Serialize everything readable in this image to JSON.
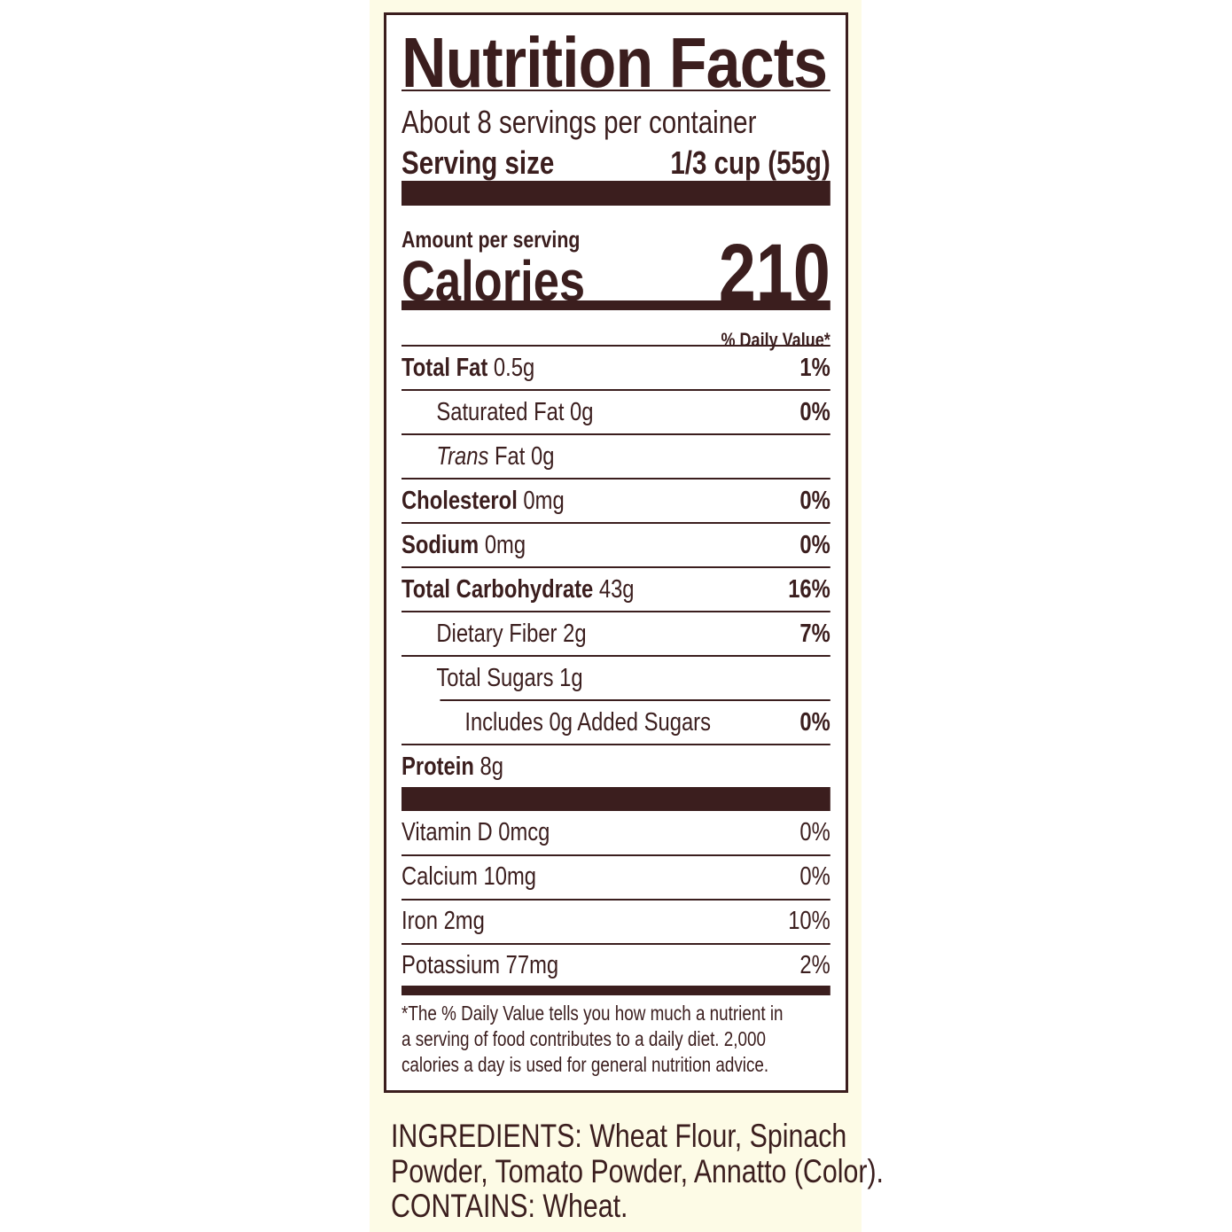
{
  "label": {
    "title": "Nutrition Facts",
    "servings_per_container": "About 8 servings per container",
    "serving_size_label": "Serving size",
    "serving_size_value": "1/3 cup (55g)",
    "amount_per_serving": "Amount per serving",
    "calories_label": "Calories",
    "calories_value": "210",
    "daily_value_header": "% Daily Value*",
    "nutrients": [
      {
        "name": "Total Fat",
        "amount": "0.5g",
        "dv": "1%"
      },
      {
        "name": "Saturated Fat",
        "amount": "0g",
        "dv": "0%"
      },
      {
        "name": "Trans",
        "amount": "Fat 0g",
        "dv": ""
      },
      {
        "name": "Cholesterol",
        "amount": "0mg",
        "dv": "0%"
      },
      {
        "name": "Sodium",
        "amount": "0mg",
        "dv": "0%"
      },
      {
        "name": "Total Carbohydrate",
        "amount": "43g",
        "dv": "16%"
      },
      {
        "name": "Dietary Fiber",
        "amount": "2g",
        "dv": "7%"
      },
      {
        "name": "Total Sugars",
        "amount": "1g",
        "dv": ""
      },
      {
        "name": "Includes 0g Added Sugars",
        "amount": "",
        "dv": "0%"
      },
      {
        "name": "Protein",
        "amount": "8g",
        "dv": ""
      }
    ],
    "vitamins": [
      {
        "text": "Vitamin D 0mcg",
        "dv": "0%"
      },
      {
        "text": "Calcium 10mg",
        "dv": "0%"
      },
      {
        "text": "Iron 2mg",
        "dv": "10%"
      },
      {
        "text": "Potassium 77mg",
        "dv": "2%"
      }
    ],
    "footnote": [
      "*The % Daily Value tells you how much a nutrient in",
      "a serving of food contributes to a daily diet. 2,000",
      "calories a day is used for general nutrition advice."
    ]
  },
  "ingredients": [
    "INGREDIENTS: Wheat Flour, Spinach",
    "Powder, Tomato Powder, Annatto (Color).",
    "CONTAINS: Wheat."
  ],
  "colors": {
    "text": "#3b1e1e",
    "panel": "#fdfbe6"
  }
}
